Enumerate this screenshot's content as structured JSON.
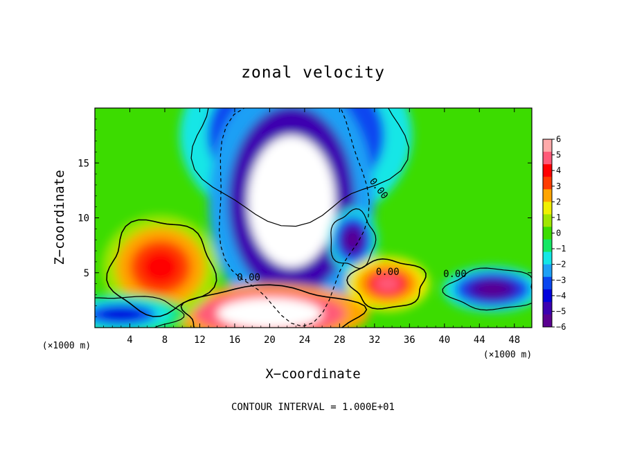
{
  "chart_data": {
    "type": "heatmap",
    "title": "zonal velocity",
    "xlabel": "X−coordinate",
    "ylabel": "Z−coordinate",
    "x_unit": "(×1000 m)",
    "y_unit": "(×1000 m)",
    "xlim": [
      0,
      50
    ],
    "ylim": [
      0,
      20
    ],
    "x_ticks": [
      4,
      8,
      12,
      16,
      20,
      24,
      28,
      32,
      36,
      40,
      44,
      48
    ],
    "x_tick_labels": [
      "4",
      "8",
      "12",
      "16",
      "20",
      "24",
      "28",
      "32",
      "36",
      "40",
      "44",
      "48"
    ],
    "y_ticks": [
      5,
      10,
      15
    ],
    "y_tick_labels": [
      "5",
      "10",
      "15"
    ],
    "colorbar": {
      "min": -6,
      "max": 6,
      "ticks": [
        6,
        5,
        4,
        3,
        2,
        1,
        0,
        -1,
        -2,
        -3,
        -4,
        -5,
        -6
      ],
      "tick_labels": [
        "6",
        "5",
        "4",
        "3",
        "2",
        "1",
        "0",
        "−1",
        "−2",
        "−3",
        "−4",
        "−5",
        "−6"
      ],
      "colors": [
        "#5a0090",
        "#3c00b0",
        "#0000dc",
        "#0a46f0",
        "#1ea0f5",
        "#14e6e6",
        "#14e664",
        "#3cdc00",
        "#a0e600",
        "#f0f000",
        "#ffa500",
        "#ff3c00",
        "#ff0000",
        "#ff5a78",
        "#ffaaaa"
      ],
      "saturation_high": "#ffffff",
      "saturation_low": "#ffffff"
    },
    "field_features": [
      {
        "kind": "jet",
        "x": 23,
        "z": 17.5,
        "rx": 7,
        "rz": 4.5,
        "value": -7
      },
      {
        "kind": "jet",
        "x": 22.5,
        "z": 11.5,
        "rx": 5,
        "rz": 6,
        "value": -9
      },
      {
        "kind": "jet",
        "x": 29.5,
        "z": 8.0,
        "rx": 1.5,
        "rz": 1.5,
        "value": -6
      },
      {
        "kind": "jet",
        "x": 20,
        "z": 1.3,
        "rx": 6,
        "rz": 1.4,
        "value": 9
      },
      {
        "kind": "jet",
        "x": 33.5,
        "z": 4.0,
        "rx": 2.5,
        "rz": 1.3,
        "value": 5
      },
      {
        "kind": "jet",
        "x": 45.5,
        "z": 3.5,
        "rx": 3,
        "rz": 1.1,
        "value": -6
      },
      {
        "kind": "jet",
        "x": 7.5,
        "z": 5.5,
        "rx": 3.5,
        "rz": 2.5,
        "value": 4
      },
      {
        "kind": "jet",
        "x": 3,
        "z": 1.2,
        "rx": 4,
        "rz": 1.0,
        "value": -4
      }
    ],
    "contour_labels": [
      {
        "text": "0.00",
        "x": 17.6,
        "z": 4.3
      },
      {
        "text": "0.00",
        "x": 33.5,
        "z": 4.8
      },
      {
        "text": "0.00",
        "x": 41.2,
        "z": 4.6
      },
      {
        "text": "0.00",
        "x": 32.2,
        "z": 12.5
      }
    ],
    "contour_interval_text": "CONTOUR INTERVAL = 1.000E+01"
  }
}
